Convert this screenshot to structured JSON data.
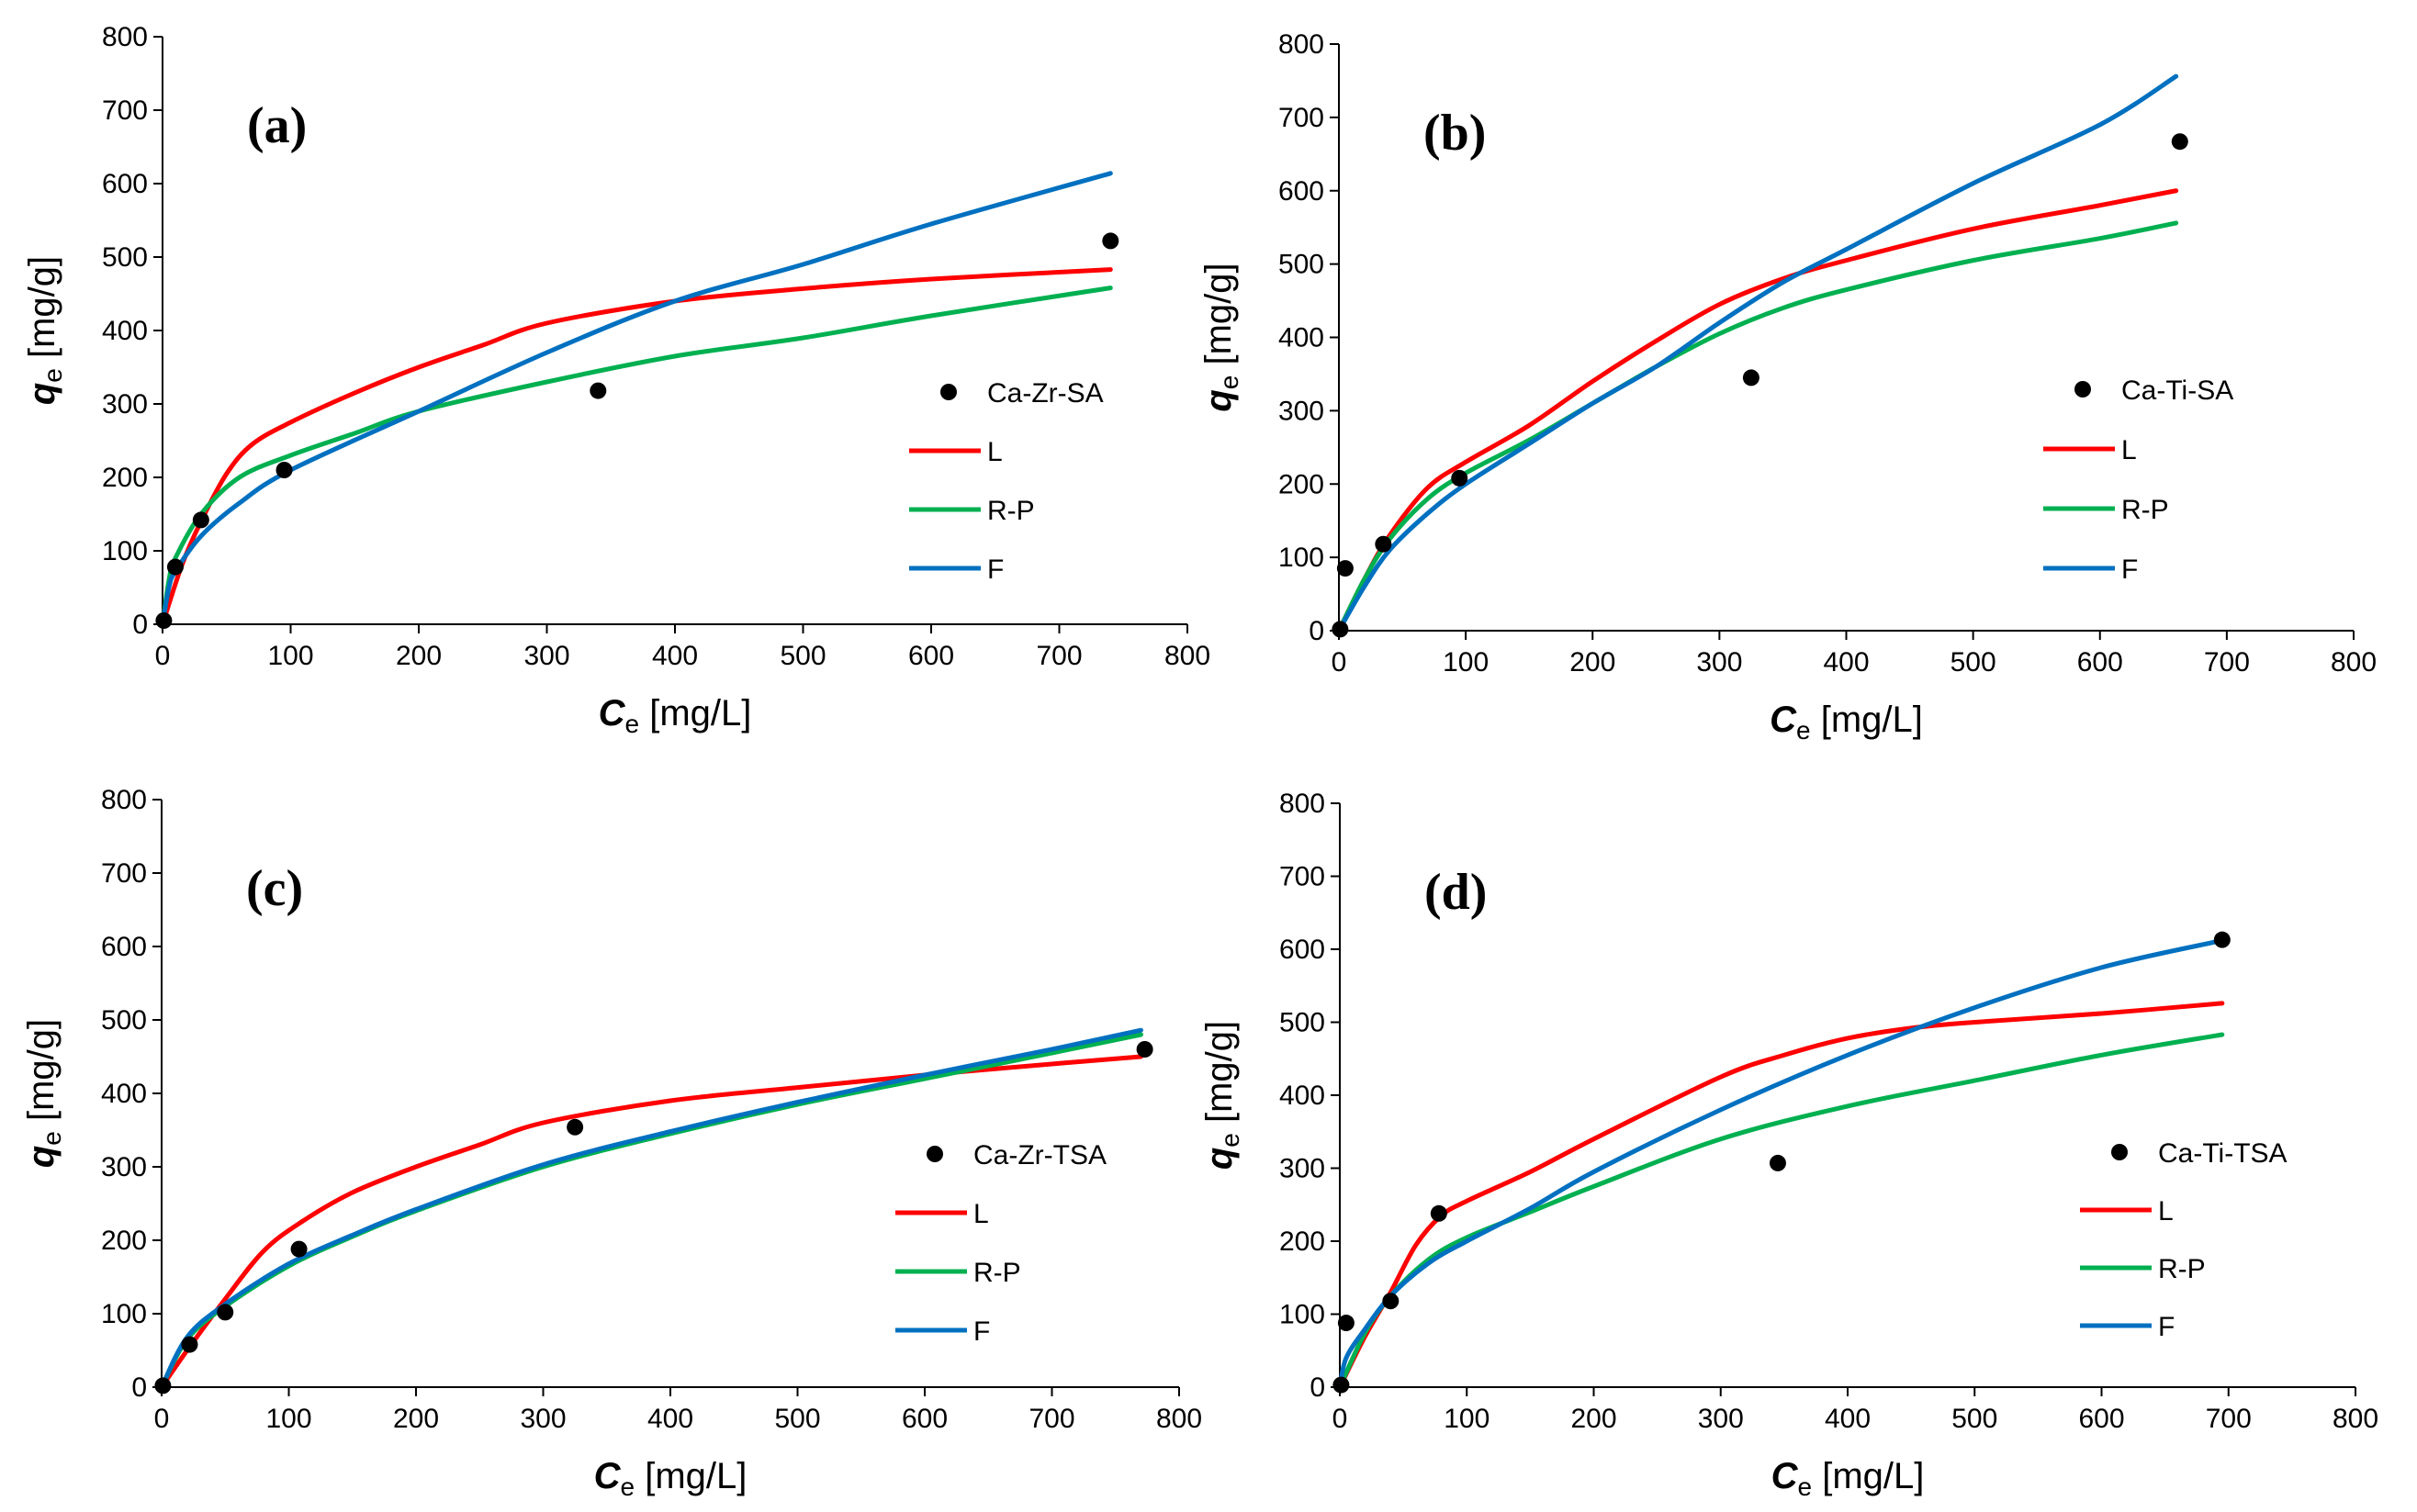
{
  "figure": {
    "x_axis_label": {
      "var": "C",
      "sub": "e",
      "unit": " [mg/L]"
    },
    "y_axis_label": {
      "var": "q",
      "sub": "e",
      "unit": " [mg/g]"
    },
    "colors": {
      "L": "#ff0000",
      "R-P": "#00b050",
      "F": "#0070c0",
      "points": "#000000"
    }
  },
  "chart_data": [
    {
      "type": "scatter",
      "panel_label": "(a)",
      "xlim": [
        0,
        800
      ],
      "ylim": [
        0,
        800
      ],
      "x_ticks": [
        0,
        100,
        200,
        300,
        400,
        500,
        600,
        700,
        800
      ],
      "y_ticks": [
        0,
        100,
        200,
        300,
        400,
        500,
        600,
        700,
        800
      ],
      "legend_position": "right",
      "points_series": "Ca-Zr-SA",
      "points": [
        [
          1,
          5
        ],
        [
          10,
          78
        ],
        [
          30,
          142
        ],
        [
          95,
          210
        ],
        [
          340,
          318
        ],
        [
          740,
          522
        ]
      ],
      "series": [
        {
          "name": "L",
          "color": "#ff0000",
          "points": [
            [
              0,
              0
            ],
            [
              15,
              80
            ],
            [
              30,
              140
            ],
            [
              50,
              205
            ],
            [
              70,
              245
            ],
            [
              100,
              275
            ],
            [
              150,
              315
            ],
            [
              200,
              350
            ],
            [
              250,
              380
            ],
            [
              300,
              410
            ],
            [
              400,
              440
            ],
            [
              500,
              457
            ],
            [
              600,
              470
            ],
            [
              740,
              483
            ]
          ]
        },
        {
          "name": "R-P",
          "color": "#00b050",
          "points": [
            [
              0,
              0
            ],
            [
              5,
              60
            ],
            [
              10,
              90
            ],
            [
              30,
              150
            ],
            [
              60,
              200
            ],
            [
              100,
              230
            ],
            [
              150,
              260
            ],
            [
              200,
              290
            ],
            [
              300,
              330
            ],
            [
              400,
              365
            ],
            [
              500,
              390
            ],
            [
              600,
              420
            ],
            [
              740,
              458
            ]
          ]
        },
        {
          "name": "F",
          "color": "#0070c0",
          "points": [
            [
              0,
              0
            ],
            [
              5,
              50
            ],
            [
              10,
              72
            ],
            [
              30,
              120
            ],
            [
              60,
              165
            ],
            [
              100,
              210
            ],
            [
              200,
              290
            ],
            [
              300,
              370
            ],
            [
              400,
              440
            ],
            [
              500,
              490
            ],
            [
              600,
              545
            ],
            [
              740,
              614
            ]
          ]
        }
      ]
    },
    {
      "type": "scatter",
      "panel_label": "(b)",
      "xlim": [
        0,
        800
      ],
      "ylim": [
        0,
        800
      ],
      "x_ticks": [
        0,
        100,
        200,
        300,
        400,
        500,
        600,
        700,
        800
      ],
      "y_ticks": [
        0,
        100,
        200,
        300,
        400,
        500,
        600,
        700,
        800
      ],
      "legend_position": "right",
      "points_series": "Ca-Ti-SA",
      "points": [
        [
          1,
          2
        ],
        [
          5,
          85
        ],
        [
          35,
          118
        ],
        [
          95,
          208
        ],
        [
          325,
          345
        ],
        [
          663,
          667
        ]
      ],
      "series": [
        {
          "name": "L",
          "color": "#ff0000",
          "points": [
            [
              0,
              0
            ],
            [
              20,
              70
            ],
            [
              40,
              130
            ],
            [
              70,
              195
            ],
            [
              100,
              230
            ],
            [
              150,
              280
            ],
            [
              200,
              340
            ],
            [
              250,
              395
            ],
            [
              300,
              445
            ],
            [
              350,
              480
            ],
            [
              400,
              505
            ],
            [
              500,
              548
            ],
            [
              600,
              580
            ],
            [
              660,
              600
            ]
          ]
        },
        {
          "name": "R-P",
          "color": "#00b050",
          "points": [
            [
              0,
              0
            ],
            [
              20,
              70
            ],
            [
              40,
              125
            ],
            [
              70,
              180
            ],
            [
              100,
              215
            ],
            [
              150,
              260
            ],
            [
              200,
              310
            ],
            [
              250,
              360
            ],
            [
              300,
              405
            ],
            [
              350,
              440
            ],
            [
              400,
              465
            ],
            [
              500,
              505
            ],
            [
              600,
              535
            ],
            [
              660,
              556
            ]
          ]
        },
        {
          "name": "F",
          "color": "#0070c0",
          "points": [
            [
              0,
              0
            ],
            [
              20,
              60
            ],
            [
              40,
              110
            ],
            [
              70,
              160
            ],
            [
              100,
              200
            ],
            [
              150,
              255
            ],
            [
              200,
              310
            ],
            [
              250,
              360
            ],
            [
              300,
              420
            ],
            [
              350,
              475
            ],
            [
              400,
              520
            ],
            [
              500,
              610
            ],
            [
              600,
              690
            ],
            [
              660,
              756
            ]
          ]
        }
      ]
    },
    {
      "type": "scatter",
      "panel_label": "(c)",
      "xlim": [
        0,
        800
      ],
      "ylim": [
        0,
        800
      ],
      "x_ticks": [
        0,
        100,
        200,
        300,
        400,
        500,
        600,
        700,
        800
      ],
      "y_ticks": [
        0,
        100,
        200,
        300,
        400,
        500,
        600,
        700,
        800
      ],
      "legend_position": "right",
      "points_series": "Ca-Zr-TSA",
      "points": [
        [
          1,
          2
        ],
        [
          22,
          58
        ],
        [
          50,
          102
        ],
        [
          108,
          188
        ],
        [
          325,
          354
        ],
        [
          773,
          460
        ]
      ],
      "series": [
        {
          "name": "L",
          "color": "#ff0000",
          "points": [
            [
              0,
              0
            ],
            [
              20,
              50
            ],
            [
              50,
              120
            ],
            [
              80,
              185
            ],
            [
              110,
              225
            ],
            [
              150,
              265
            ],
            [
              200,
              300
            ],
            [
              250,
              330
            ],
            [
              300,
              360
            ],
            [
              400,
              390
            ],
            [
              500,
              408
            ],
            [
              600,
              425
            ],
            [
              700,
              440
            ],
            [
              770,
              450
            ]
          ]
        },
        {
          "name": "R-P",
          "color": "#00b050",
          "points": [
            [
              0,
              0
            ],
            [
              20,
              65
            ],
            [
              50,
              110
            ],
            [
              100,
              165
            ],
            [
              150,
              205
            ],
            [
              200,
              240
            ],
            [
              300,
              300
            ],
            [
              400,
              345
            ],
            [
              500,
              385
            ],
            [
              600,
              420
            ],
            [
              700,
              455
            ],
            [
              770,
              480
            ]
          ]
        },
        {
          "name": "F",
          "color": "#0070c0",
          "points": [
            [
              0,
              0
            ],
            [
              20,
              68
            ],
            [
              50,
              113
            ],
            [
              100,
              168
            ],
            [
              150,
              207
            ],
            [
              200,
              242
            ],
            [
              300,
              303
            ],
            [
              400,
              348
            ],
            [
              500,
              388
            ],
            [
              600,
              425
            ],
            [
              700,
              460
            ],
            [
              770,
              486
            ]
          ]
        }
      ]
    },
    {
      "type": "scatter",
      "panel_label": "(d)",
      "xlim": [
        0,
        800
      ],
      "ylim": [
        0,
        800
      ],
      "x_ticks": [
        0,
        100,
        200,
        300,
        400,
        500,
        600,
        700,
        800
      ],
      "y_ticks": [
        0,
        100,
        200,
        300,
        400,
        500,
        600,
        700,
        800
      ],
      "legend_position": "right",
      "points_series": "Ca-Ti-TSA",
      "points": [
        [
          1,
          3
        ],
        [
          5,
          88
        ],
        [
          40,
          118
        ],
        [
          78,
          238
        ],
        [
          345,
          307
        ],
        [
          695,
          613
        ]
      ],
      "series": [
        {
          "name": "L",
          "color": "#ff0000",
          "points": [
            [
              0,
              0
            ],
            [
              20,
              70
            ],
            [
              40,
              130
            ],
            [
              60,
              195
            ],
            [
              80,
              235
            ],
            [
              100,
              255
            ],
            [
              150,
              295
            ],
            [
              200,
              340
            ],
            [
              300,
              425
            ],
            [
              350,
              455
            ],
            [
              400,
              478
            ],
            [
              450,
              492
            ],
            [
              500,
              500
            ],
            [
              600,
              512
            ],
            [
              695,
              526
            ]
          ]
        },
        {
          "name": "R-P",
          "color": "#00b050",
          "points": [
            [
              0,
              0
            ],
            [
              20,
              75
            ],
            [
              40,
              125
            ],
            [
              70,
              175
            ],
            [
              100,
              205
            ],
            [
              150,
              240
            ],
            [
              200,
              275
            ],
            [
              300,
              340
            ],
            [
              400,
              385
            ],
            [
              500,
              420
            ],
            [
              600,
              455
            ],
            [
              695,
              483
            ]
          ]
        },
        {
          "name": "F",
          "color": "#0070c0",
          "points": [
            [
              0,
              0
            ],
            [
              5,
              40
            ],
            [
              20,
              80
            ],
            [
              40,
              125
            ],
            [
              70,
              170
            ],
            [
              100,
              200
            ],
            [
              150,
              245
            ],
            [
              200,
              295
            ],
            [
              300,
              380
            ],
            [
              400,
              455
            ],
            [
              500,
              520
            ],
            [
              600,
              575
            ],
            [
              695,
              612
            ]
          ]
        }
      ]
    }
  ]
}
